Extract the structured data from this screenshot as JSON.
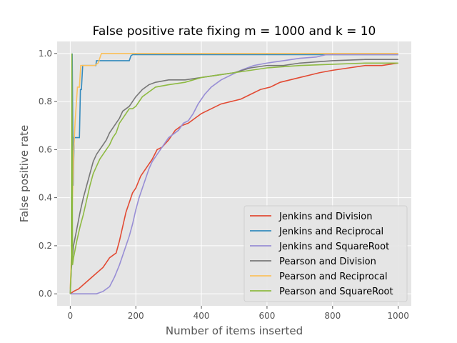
{
  "chart_data": {
    "type": "line",
    "title": "False positive rate fixing m = 1000 and k = 10",
    "xlabel": "Number of items inserted",
    "ylabel": "False positive rate",
    "xlim": [
      -40,
      1040
    ],
    "ylim": [
      -0.05,
      1.05
    ],
    "xticks": [
      0,
      200,
      400,
      600,
      800,
      1000
    ],
    "yticks": [
      0.0,
      0.2,
      0.4,
      0.6,
      0.8,
      1.0
    ],
    "xtick_labels": [
      "0",
      "200",
      "400",
      "600",
      "800",
      "1000"
    ],
    "ytick_labels": [
      "0.0",
      "0.2",
      "0.4",
      "0.6",
      "0.8",
      "1.0"
    ],
    "grid": true,
    "legend_position": "lower-right",
    "series": [
      {
        "name": "Jenkins and Division",
        "color": "#E24A33",
        "x": [
          0,
          10,
          25,
          50,
          75,
          100,
          120,
          140,
          150,
          160,
          170,
          180,
          190,
          200,
          215,
          230,
          250,
          265,
          280,
          300,
          320,
          340,
          360,
          380,
          400,
          430,
          460,
          490,
          520,
          550,
          580,
          610,
          640,
          670,
          700,
          730,
          760,
          800,
          850,
          900,
          950,
          1000
        ],
        "y": [
          0.0,
          0.01,
          0.02,
          0.05,
          0.08,
          0.11,
          0.15,
          0.17,
          0.22,
          0.28,
          0.34,
          0.38,
          0.42,
          0.44,
          0.49,
          0.52,
          0.56,
          0.6,
          0.61,
          0.64,
          0.68,
          0.7,
          0.71,
          0.73,
          0.75,
          0.77,
          0.79,
          0.8,
          0.81,
          0.83,
          0.85,
          0.86,
          0.88,
          0.89,
          0.9,
          0.91,
          0.92,
          0.93,
          0.94,
          0.95,
          0.95,
          0.96
        ]
      },
      {
        "name": "Jenkins and Reciprocal",
        "color": "#348ABD",
        "x": [
          0,
          3,
          6,
          9,
          12,
          20,
          28,
          31,
          34,
          38,
          42,
          60,
          78,
          80,
          85,
          100,
          140,
          180,
          185,
          190,
          600,
          1000
        ],
        "y": [
          0.02,
          0.1,
          1.0,
          0.45,
          0.65,
          0.65,
          0.65,
          0.85,
          0.85,
          0.95,
          0.95,
          0.95,
          0.95,
          0.97,
          0.97,
          0.97,
          0.97,
          0.97,
          0.99,
          0.995,
          0.995,
          0.995
        ]
      },
      {
        "name": "Jenkins and SquareRoot",
        "color": "#988ED5",
        "x": [
          0,
          20,
          50,
          80,
          100,
          120,
          135,
          150,
          160,
          170,
          180,
          190,
          200,
          210,
          220,
          230,
          240,
          250,
          260,
          270,
          280,
          290,
          300,
          310,
          320,
          330,
          345,
          360,
          375,
          390,
          410,
          430,
          460,
          490,
          520,
          560,
          600,
          650,
          700,
          750,
          780,
          1000
        ],
        "y": [
          0.0,
          0.0,
          0.0,
          0.0,
          0.01,
          0.03,
          0.07,
          0.12,
          0.16,
          0.2,
          0.24,
          0.29,
          0.35,
          0.4,
          0.44,
          0.48,
          0.52,
          0.55,
          0.57,
          0.59,
          0.61,
          0.63,
          0.65,
          0.66,
          0.67,
          0.68,
          0.71,
          0.72,
          0.75,
          0.79,
          0.83,
          0.86,
          0.89,
          0.91,
          0.93,
          0.95,
          0.96,
          0.97,
          0.98,
          0.985,
          0.995,
          0.995
        ]
      },
      {
        "name": "Pearson and Division",
        "color": "#777777",
        "x": [
          0,
          3,
          6,
          10,
          20,
          30,
          40,
          50,
          60,
          70,
          80,
          90,
          100,
          110,
          120,
          130,
          140,
          150,
          160,
          170,
          180,
          190,
          200,
          220,
          240,
          260,
          300,
          350,
          400,
          450,
          500,
          550,
          600,
          650,
          700,
          800,
          900,
          1000
        ],
        "y": [
          0.0,
          0.1,
          0.14,
          0.2,
          0.27,
          0.34,
          0.4,
          0.45,
          0.5,
          0.55,
          0.58,
          0.6,
          0.62,
          0.64,
          0.67,
          0.69,
          0.71,
          0.73,
          0.76,
          0.77,
          0.78,
          0.8,
          0.82,
          0.85,
          0.87,
          0.88,
          0.89,
          0.89,
          0.9,
          0.91,
          0.92,
          0.94,
          0.95,
          0.95,
          0.96,
          0.97,
          0.975,
          0.975
        ]
      },
      {
        "name": "Pearson and Reciprocal",
        "color": "#FBC15E",
        "x": [
          0,
          3,
          6,
          10,
          15,
          22,
          28,
          32,
          38,
          60,
          75,
          85,
          95,
          100,
          200,
          1000
        ],
        "y": [
          0.02,
          0.15,
          0.35,
          0.58,
          0.72,
          0.86,
          0.86,
          0.95,
          0.95,
          0.95,
          0.95,
          0.96,
          1.0,
          1.0,
          1.0,
          1.0
        ]
      },
      {
        "name": "Pearson and SquareRoot",
        "color": "#8EBA42",
        "x": [
          0,
          3,
          5,
          7,
          10,
          20,
          30,
          40,
          50,
          60,
          70,
          80,
          90,
          100,
          110,
          120,
          130,
          140,
          150,
          160,
          170,
          180,
          190,
          200,
          220,
          240,
          260,
          300,
          350,
          400,
          450,
          500,
          600,
          700,
          800,
          900,
          1000
        ],
        "y": [
          0.0,
          0.1,
          1.0,
          0.12,
          0.15,
          0.22,
          0.28,
          0.33,
          0.39,
          0.45,
          0.5,
          0.53,
          0.56,
          0.58,
          0.6,
          0.62,
          0.65,
          0.67,
          0.71,
          0.73,
          0.75,
          0.77,
          0.77,
          0.78,
          0.82,
          0.84,
          0.86,
          0.87,
          0.88,
          0.9,
          0.91,
          0.92,
          0.94,
          0.95,
          0.955,
          0.96,
          0.96
        ]
      }
    ]
  }
}
